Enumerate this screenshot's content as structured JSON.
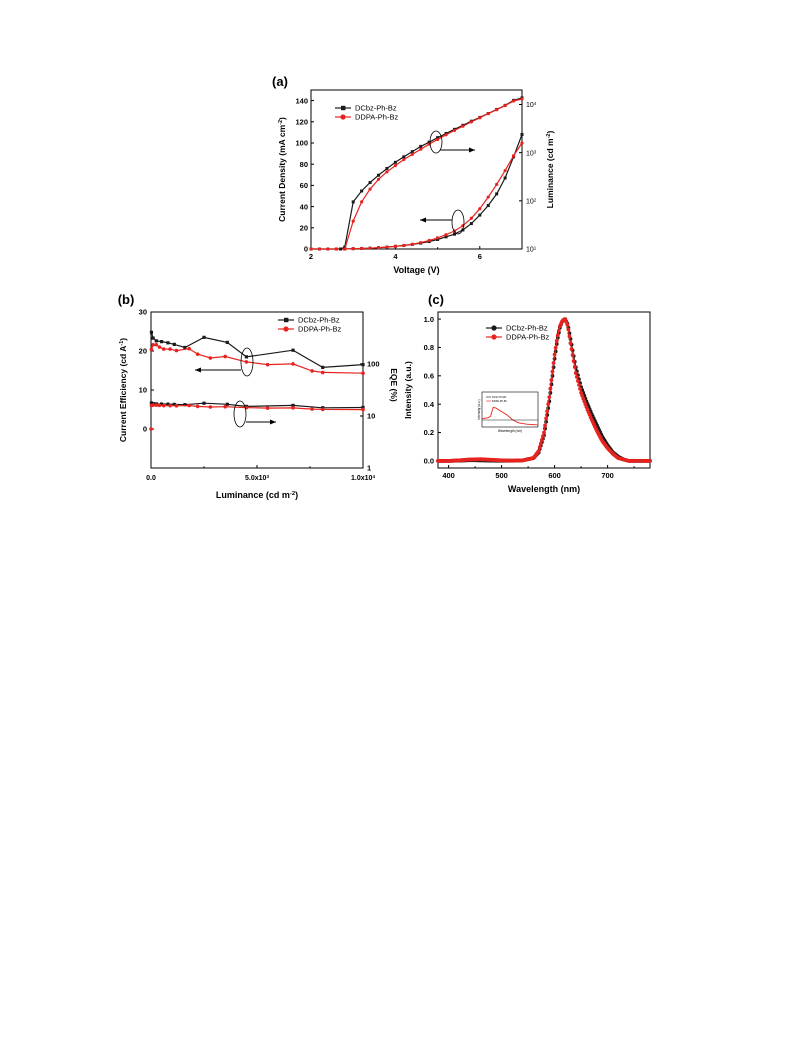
{
  "colors": {
    "black_series": "#1a1a1a",
    "red_series": "#e8231f",
    "axis": "#000000"
  },
  "chart_data": [
    {
      "panel": "(a)",
      "type": "line",
      "xlabel": "Voltage (V)",
      "ylabel_left": "Current Density (mA cm",
      "ylabel_left_sup": "-2",
      "ylabel_right": "Luminance (cd m",
      "ylabel_right_sup": "-2",
      "xlim": [
        2,
        7
      ],
      "ylim_left": [
        0,
        150
      ],
      "ylim_right": [
        10,
        20000
      ],
      "right_scale": "log",
      "x_ticks": [
        "2",
        "4",
        "6"
      ],
      "y_left_ticks": [
        "0",
        "20",
        "40",
        "60",
        "80",
        "100",
        "120",
        "140"
      ],
      "y_right_ticks": [
        {
          "base": "10",
          "exp": "1"
        },
        {
          "base": "10",
          "exp": "2"
        },
        {
          "base": "10",
          "exp": "3"
        },
        {
          "base": "10",
          "exp": "4"
        }
      ],
      "legend": "top-left",
      "series": [
        {
          "name": "DCbz-Ph-Bz",
          "color": "black",
          "axis": "left",
          "x": [
            2.0,
            2.2,
            2.4,
            2.6,
            2.8,
            3.0,
            3.2,
            3.4,
            3.6,
            3.8,
            4.0,
            4.2,
            4.4,
            4.6,
            4.8,
            5.0,
            5.2,
            5.4,
            5.6,
            5.8,
            6.0,
            6.2,
            6.4,
            6.6,
            6.8,
            7.0
          ],
          "y": [
            0,
            0,
            0,
            0,
            0,
            0.3,
            0.5,
            0.8,
            1.2,
            1.8,
            2.5,
            3.3,
            4.3,
            5.5,
            7,
            9,
            11.5,
            14,
            18,
            24,
            32,
            41,
            52,
            67,
            87,
            108
          ]
        },
        {
          "name": "DDPA-Ph-Bz",
          "color": "red",
          "axis": "left",
          "x": [
            2.0,
            2.2,
            2.4,
            2.6,
            2.8,
            3.0,
            3.2,
            3.4,
            3.6,
            3.8,
            4.0,
            4.2,
            4.4,
            4.6,
            4.8,
            5.0,
            5.2,
            5.4,
            5.6,
            5.8,
            6.0,
            6.2,
            6.4,
            6.6,
            6.8,
            7.0
          ],
          "y": [
            0,
            0,
            0,
            0,
            0,
            0.3,
            0.5,
            0.8,
            1.2,
            1.8,
            2.5,
            3.3,
            4.5,
            6,
            8,
            10.5,
            13.5,
            17,
            22,
            29,
            38,
            49,
            61,
            74,
            88,
            100
          ]
        },
        {
          "name": "DCbz-Ph-Bz",
          "color": "black",
          "axis": "right",
          "x": [
            2.7,
            2.8,
            3.0,
            3.2,
            3.4,
            3.6,
            3.8,
            4.0,
            4.2,
            4.4,
            4.6,
            4.8,
            5.0,
            5.2,
            5.4,
            5.6,
            5.8,
            6.0,
            6.2,
            6.4,
            6.6,
            6.8,
            7.0
          ],
          "y": [
            10,
            11,
            95,
            160,
            240,
            340,
            470,
            630,
            820,
            1050,
            1350,
            1650,
            2050,
            2500,
            3050,
            3700,
            4500,
            5400,
            6500,
            7900,
            9600,
            12200,
            13700
          ]
        },
        {
          "name": "DDPA-Ph-Bz",
          "color": "red",
          "axis": "right",
          "x": [
            2.8,
            3.0,
            3.2,
            3.4,
            3.6,
            3.8,
            4.0,
            4.2,
            4.4,
            4.6,
            4.8,
            5.0,
            5.2,
            5.4,
            5.6,
            5.8,
            6.0,
            6.2,
            6.4,
            6.6,
            6.8,
            7.0
          ],
          "y": [
            10,
            38,
            95,
            175,
            280,
            400,
            540,
            720,
            920,
            1180,
            1500,
            1880,
            2350,
            2900,
            3550,
            4350,
            5300,
            6450,
            7800,
            9500,
            11800,
            13000
          ]
        }
      ]
    },
    {
      "panel": "(b)",
      "type": "line",
      "xlabel": "Luminance (cd m",
      "xlabel_sup": "-2",
      "ylabel_left": "Current Efficiency (cd A",
      "ylabel_left_sup": "-1",
      "ylabel_right": "EQE (%)",
      "xlim": [
        0,
        10000
      ],
      "ylim_left": [
        -10,
        30
      ],
      "ylim_right": [
        1,
        1000
      ],
      "right_scale": "log",
      "x_ticks": [
        {
          "label": "0.0",
          "exp": ""
        },
        {
          "label": "5.0x10",
          "exp": "3"
        },
        {
          "label": "1.0x10",
          "exp": "4"
        }
      ],
      "y_left_ticks": [
        "0",
        "10",
        "20",
        "30"
      ],
      "y_right_ticks": [
        "1",
        "10",
        "100"
      ],
      "legend": "top-right",
      "series": [
        {
          "name": "DCbz-Ph-Bz",
          "color": "black",
          "axis": "left",
          "x": [
            20,
            100,
            250,
            500,
            800,
            1100,
            1600,
            2500,
            3600,
            4500,
            6700,
            8100,
            10000
          ],
          "y": [
            24.8,
            23.3,
            22.6,
            22.4,
            22.1,
            21.7,
            20.9,
            23.5,
            22.2,
            18.5,
            20.2,
            15.8,
            16.5
          ]
        },
        {
          "name": "DDPA-Ph-Bz",
          "color": "red",
          "axis": "left",
          "x": [
            20,
            100,
            250,
            400,
            600,
            900,
            1200,
            1800,
            2200,
            2800,
            3500,
            4500,
            5500,
            6700,
            7600,
            8100,
            10000
          ],
          "y": [
            20.4,
            21.6,
            21.6,
            21.0,
            20.5,
            20.5,
            20.1,
            20.6,
            19.2,
            18.2,
            18.6,
            17.2,
            16.5,
            16.7,
            14.9,
            14.5,
            14.3
          ]
        },
        {
          "name": "DCbz-Ph-Bz",
          "color": "black",
          "axis": "right",
          "x": [
            20,
            100,
            250,
            500,
            800,
            1100,
            1600,
            2500,
            3600,
            4500,
            6700,
            8100,
            10000
          ],
          "y": [
            17.8,
            17.3,
            17.1,
            17.0,
            16.9,
            16.7,
            16.5,
            17.6,
            16.8,
            15.3,
            16.0,
            14.4,
            14.6
          ]
        },
        {
          "name": "DDPA-Ph-Bz",
          "color": "red",
          "axis": "right",
          "x": [
            20,
            100,
            250,
            400,
            600,
            900,
            1200,
            1800,
            2200,
            2800,
            3500,
            4500,
            5500,
            6700,
            7600,
            8100,
            10000
          ],
          "y": [
            15.9,
            16.2,
            16.2,
            16.0,
            15.8,
            15.8,
            15.7,
            15.9,
            15.3,
            14.9,
            15.1,
            14.5,
            14.2,
            14.3,
            13.6,
            13.4,
            13.3
          ]
        }
      ]
    },
    {
      "panel": "(c)",
      "type": "line",
      "xlabel": "Wavelength (nm)",
      "ylabel": "Intensity (a.u.)",
      "xlim": [
        380,
        780
      ],
      "ylim": [
        -0.05,
        1.05
      ],
      "x_ticks": [
        "400",
        "500",
        "600",
        "700"
      ],
      "y_ticks": [
        "0.0",
        "0.2",
        "0.4",
        "0.6",
        "0.8",
        "1.0"
      ],
      "legend": "top-left",
      "inset": {
        "xlabel": "Wavelength (nm)",
        "ylabel": "Intensity (a.u.)",
        "legend": [
          "DCbz-Ph-Bz",
          "DDPA-Ph-Bz"
        ]
      },
      "series": [
        {
          "name": "DCbz-Ph-Bz",
          "color": "black",
          "x": [
            380,
            400,
            420,
            440,
            460,
            480,
            500,
            520,
            540,
            560,
            570,
            580,
            590,
            600,
            605,
            610,
            615,
            620,
            625,
            630,
            640,
            650,
            660,
            670,
            680,
            690,
            700,
            710,
            720,
            730,
            740,
            760,
            780
          ],
          "y": [
            0,
            0,
            0.002,
            0.005,
            0.004,
            0.002,
            0.001,
            0.001,
            0.004,
            0.02,
            0.06,
            0.18,
            0.42,
            0.72,
            0.85,
            0.94,
            0.99,
            1.0,
            0.96,
            0.86,
            0.66,
            0.52,
            0.42,
            0.33,
            0.25,
            0.17,
            0.11,
            0.06,
            0.03,
            0.01,
            0,
            0,
            0
          ]
        },
        {
          "name": "DDPA-Ph-Bz",
          "color": "red",
          "x": [
            380,
            400,
            420,
            440,
            460,
            480,
            500,
            520,
            540,
            560,
            570,
            580,
            590,
            600,
            605,
            610,
            615,
            620,
            625,
            630,
            640,
            650,
            660,
            670,
            680,
            690,
            700,
            710,
            720,
            730,
            740,
            760,
            780
          ],
          "y": [
            0,
            0,
            0.004,
            0.01,
            0.012,
            0.008,
            0.004,
            0.002,
            0.004,
            0.02,
            0.07,
            0.2,
            0.45,
            0.75,
            0.87,
            0.95,
            0.99,
            1.0,
            0.95,
            0.83,
            0.62,
            0.48,
            0.38,
            0.29,
            0.21,
            0.14,
            0.09,
            0.05,
            0.02,
            0.01,
            0,
            0,
            0
          ]
        }
      ]
    }
  ]
}
